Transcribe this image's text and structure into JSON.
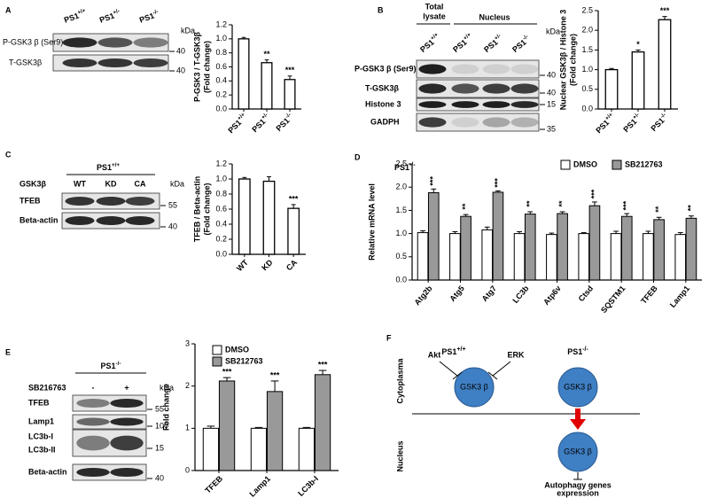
{
  "figure": {
    "panel_letters": [
      "A",
      "B",
      "C",
      "D",
      "E",
      "F"
    ]
  },
  "blots": {
    "A": {
      "columns": [
        "PS1+/+",
        "PS1+/-",
        "PS1-/-"
      ],
      "kda": "kDa",
      "rows": [
        "P-GSK3 β (Ser9)",
        "T-GSK3β"
      ],
      "markers": [
        40,
        40
      ]
    },
    "B": {
      "groups": [
        "Total",
        "lysate",
        "Nucleus"
      ],
      "columns": [
        "PS1+/+",
        "PS1+/+",
        "PS1+/-",
        "PS1-/-"
      ],
      "kda": "kDa",
      "rows": [
        "P-GSK3 β (Ser9)",
        "T-GSK3β",
        "Histone 3",
        "GADPH"
      ],
      "markers": [
        40,
        40,
        15,
        35
      ]
    },
    "C": {
      "group": "PS1+/+",
      "factor": "GSK3β",
      "columns": [
        "WT",
        "KD",
        "CA"
      ],
      "kda": "kDa",
      "rows": [
        "TFEB",
        "Beta-actin"
      ],
      "markers": [
        55,
        40
      ]
    },
    "E": {
      "group": "PS1-/-",
      "factor": "SB216763",
      "columns": [
        "-",
        "+"
      ],
      "kda": "kDa",
      "rows": [
        "TFEB",
        "Lamp1",
        "LC3b-I",
        "LC3b-II",
        "Beta-actin"
      ],
      "markers": [
        55,
        100,
        15,
        40
      ]
    }
  },
  "chart_data": [
    {
      "type": "bar",
      "ylabel": [
        "P-GSK3 / T-GSK3β",
        "(Fold change)"
      ],
      "categories": [
        "PS1+/+",
        "PS1+/-",
        "PS1-/-"
      ],
      "values": [
        1.0,
        0.66,
        0.42
      ],
      "errors": [
        0.02,
        0.04,
        0.05
      ],
      "labels": [
        null,
        "**",
        "***"
      ],
      "color": "#ffffff",
      "ylim": [
        0,
        1.2
      ],
      "yticks": [
        {
          "value": 0,
          "label": "0.0"
        },
        0.2,
        0.4,
        0.6,
        0.8,
        {
          "value": 1,
          "label": "1.0"
        },
        1.2
      ]
    },
    {
      "type": "bar",
      "ylabel": [
        "Nuclear GSK3β / Histone 3",
        "(Fold change)"
      ],
      "categories": [
        "PS1+/+",
        "PS1+/-",
        "PS1-/-"
      ],
      "values": [
        1.0,
        1.45,
        2.27
      ],
      "errors": [
        0.03,
        0.05,
        0.08
      ],
      "labels": [
        null,
        "*",
        "***"
      ],
      "color": "#ffffff",
      "ylim": [
        0,
        2.5
      ],
      "yticks": [
        {
          "value": 0,
          "label": "0.0"
        },
        0.5,
        {
          "value": 1,
          "label": "1.0"
        },
        1.5,
        {
          "value": 2,
          "label": "2.0"
        },
        2.5
      ]
    },
    {
      "type": "bar",
      "ylabel": [
        "TFEB / Beta-actin",
        "(Fold change)"
      ],
      "categories": [
        "WT",
        "KD",
        "CA"
      ],
      "values": [
        1.0,
        0.97,
        0.61
      ],
      "errors": [
        0.02,
        0.06,
        0.05
      ],
      "labels": [
        null,
        null,
        "***"
      ],
      "color": "#ffffff",
      "ylim": [
        0,
        1.2
      ],
      "yticks": [
        {
          "value": 0,
          "label": "0.0"
        },
        0.2,
        0.4,
        0.6,
        0.8,
        {
          "value": 1,
          "label": "1.0"
        },
        1.2
      ]
    },
    {
      "type": "grouped-bar",
      "title": "PS1-/-",
      "ylabel": [
        "Relative mRNA level"
      ],
      "categories": [
        "Atg2b",
        "Atg5",
        "Atg7",
        "LC3b",
        "Atp6v",
        "Ctsd",
        "SQSTM1",
        "TFEB",
        "Lamp1"
      ],
      "series": [
        {
          "name": "DMSO",
          "color": "#ffffff",
          "values": [
            1.02,
            1.0,
            1.08,
            1.0,
            0.98,
            1.0,
            1.0,
            1.0,
            0.98
          ],
          "errors": [
            0.04,
            0.04,
            0.06,
            0.04,
            0.03,
            0.02,
            0.05,
            0.05,
            0.04
          ]
        },
        {
          "name": "SB212763",
          "color": "#999999",
          "values": [
            1.88,
            1.37,
            1.89,
            1.42,
            1.43,
            1.6,
            1.37,
            1.3,
            1.33
          ],
          "errors": [
            0.08,
            0.04,
            0.03,
            0.05,
            0.04,
            0.08,
            0.06,
            0.05,
            0.05
          ],
          "labels": [
            "***",
            "**",
            "***",
            "**",
            "**",
            "***",
            "***",
            "**",
            "**"
          ]
        }
      ],
      "legend": "top",
      "ylim": [
        0,
        2.5
      ],
      "yticks": [
        {
          "value": 0,
          "label": "0.0"
        },
        0.5,
        {
          "value": 1,
          "label": "1.0"
        },
        1.5,
        {
          "value": 2,
          "label": "2.0"
        },
        2.5
      ]
    },
    {
      "type": "grouped-bar",
      "ylabel": [
        "Fold change"
      ],
      "categories": [
        "TFEB",
        "Lamp1",
        "LC3b-I"
      ],
      "series": [
        {
          "name": "DMSO",
          "color": "#ffffff",
          "values": [
            1.0,
            1.0,
            1.0
          ],
          "errors": [
            0.05,
            0.02,
            0.02
          ]
        },
        {
          "name": "SB212763",
          "color": "#999999",
          "values": [
            2.12,
            1.87,
            2.27
          ],
          "errors": [
            0.08,
            0.25,
            0.1
          ],
          "labels": [
            "***",
            "***",
            "***"
          ]
        }
      ],
      "legend": "top-left",
      "ylim": [
        0,
        3
      ],
      "yticks": [
        0,
        1,
        2,
        3
      ]
    }
  ],
  "diagram": {
    "columns": [
      "PS1+/+",
      "PS1-/-"
    ],
    "compartments": [
      "Cytoplasma",
      "Nucleus"
    ],
    "inhibitors": [
      "Akt",
      "ERK"
    ],
    "nodes": [
      "GSK3 β",
      "GSK3 β",
      "GSK3 β"
    ],
    "outcome": [
      "Autophagy genes",
      "expression"
    ]
  }
}
